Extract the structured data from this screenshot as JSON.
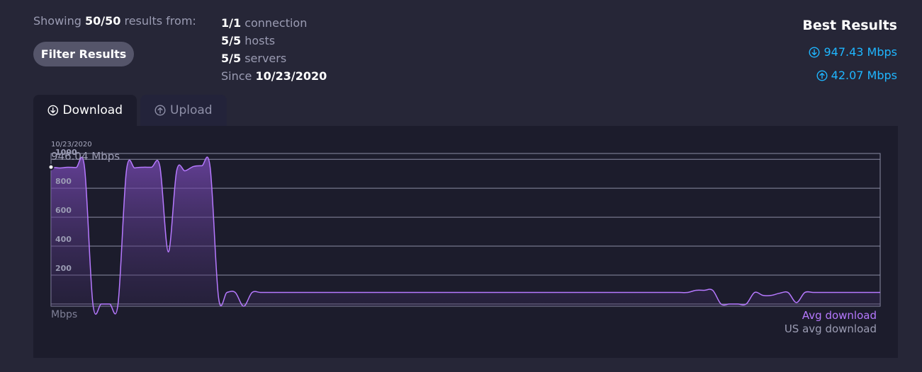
{
  "header": {
    "showing_prefix": "Showing",
    "showing_count": "50/50",
    "showing_suffix": "results from:",
    "filter_button": "Filter Results",
    "stats": [
      {
        "value": "1/1",
        "label": "connection"
      },
      {
        "value": "5/5",
        "label": "hosts"
      },
      {
        "value": "5/5",
        "label": "servers"
      },
      {
        "label": "Since",
        "value": "10/23/2020"
      }
    ]
  },
  "best_results": {
    "title": "Best Results",
    "download": "947.43 Mbps",
    "upload": "42.07 Mbps",
    "download_icon": "arrow-down-circle-icon",
    "upload_icon": "arrow-up-circle-icon"
  },
  "tabs": [
    {
      "label": "Download",
      "icon": "arrow-down-circle-icon",
      "active": true
    },
    {
      "label": "Upload",
      "icon": "arrow-up-circle-icon",
      "active": false
    }
  ],
  "chart": {
    "tooltip_date": "10/23/2020",
    "tooltip_value": "946.04 Mbps",
    "unit_label": "Mbps",
    "legend": [
      "Avg download",
      "US avg download"
    ],
    "colors": {
      "line": "#b679ff",
      "panel": "#1c1c2c",
      "grid": "#8a8ba3",
      "accent": "#1fb6ff"
    }
  },
  "chart_data": {
    "type": "area",
    "title": "",
    "xlabel": "",
    "ylabel": "Mbps",
    "yticks": [
      200,
      400,
      600,
      800,
      1000
    ],
    "ylim": [
      -15,
      1040
    ],
    "grid": true,
    "legend_position": "bottom-right",
    "series": [
      {
        "name": "Avg download",
        "color": "#b679ff",
        "values": [
          946,
          940,
          945,
          943,
          945,
          0,
          0,
          0,
          0,
          920,
          940,
          945,
          945,
          950,
          360,
          920,
          920,
          950,
          955,
          945,
          45,
          80,
          80,
          -15,
          80,
          80,
          80,
          80,
          80,
          80,
          80,
          80,
          80,
          80,
          80,
          80,
          80,
          80,
          80,
          80,
          80,
          80,
          80,
          80,
          80,
          80,
          80,
          80,
          80,
          80,
          80,
          80,
          80,
          80,
          80,
          80,
          80,
          80,
          80,
          80,
          80,
          80,
          80,
          80,
          80,
          80,
          80,
          80,
          80,
          80,
          80,
          80,
          80,
          80,
          80,
          80,
          80,
          95,
          95,
          95,
          0,
          0,
          0,
          0,
          80,
          60,
          60,
          75,
          80,
          10,
          80,
          80,
          80,
          80,
          80,
          80,
          80,
          80,
          80,
          80
        ]
      }
    ]
  }
}
